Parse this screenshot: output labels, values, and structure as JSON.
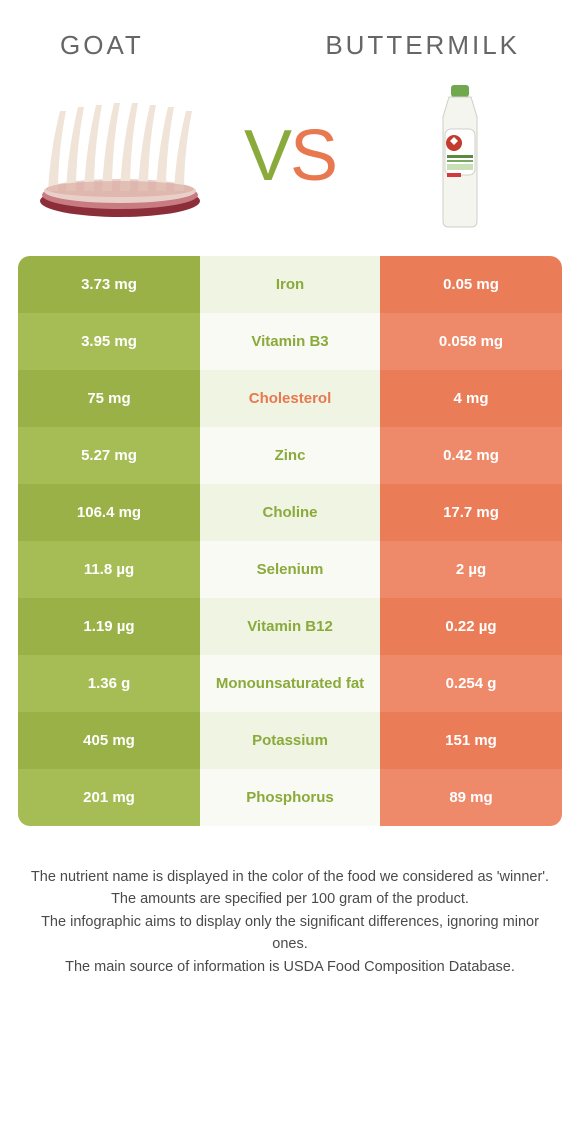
{
  "header": {
    "left_title": "GOAT",
    "right_title": "BUTTERMILK"
  },
  "vs": {
    "v": "V",
    "s": "S"
  },
  "colors": {
    "left_cell_odd": "#99b146",
    "left_cell_even": "#a6bd56",
    "right_cell_odd": "#ea7c58",
    "right_cell_even": "#ee8a69",
    "mid_winner_left": "#8aaa3b",
    "mid_winner_right": "#e87850"
  },
  "rows": [
    {
      "left": "3.73 mg",
      "nutrient": "Iron",
      "right": "0.05 mg",
      "winner": "left"
    },
    {
      "left": "3.95 mg",
      "nutrient": "Vitamin B3",
      "right": "0.058 mg",
      "winner": "left"
    },
    {
      "left": "75 mg",
      "nutrient": "Cholesterol",
      "right": "4 mg",
      "winner": "right"
    },
    {
      "left": "5.27 mg",
      "nutrient": "Zinc",
      "right": "0.42 mg",
      "winner": "left"
    },
    {
      "left": "106.4 mg",
      "nutrient": "Choline",
      "right": "17.7 mg",
      "winner": "left"
    },
    {
      "left": "11.8 µg",
      "nutrient": "Selenium",
      "right": "2 µg",
      "winner": "left"
    },
    {
      "left": "1.19 µg",
      "nutrient": "Vitamin B12",
      "right": "0.22 µg",
      "winner": "left"
    },
    {
      "left": "1.36 g",
      "nutrient": "Monounsaturated fat",
      "right": "0.254 g",
      "winner": "left"
    },
    {
      "left": "405 mg",
      "nutrient": "Potassium",
      "right": "151 mg",
      "winner": "left"
    },
    {
      "left": "201 mg",
      "nutrient": "Phosphorus",
      "right": "89 mg",
      "winner": "left"
    }
  ],
  "footnotes": [
    "The nutrient name is displayed in the color of the food we considered as 'winner'.",
    "The amounts are specified per 100 gram of the product.",
    "The infographic aims to display only the significant differences, ignoring minor ones.",
    "The main source of information is USDA Food Composition Database."
  ]
}
